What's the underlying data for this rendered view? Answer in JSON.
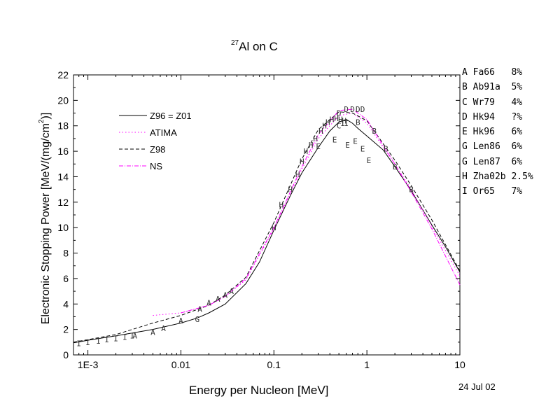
{
  "title": {
    "sup": "27",
    "text": "Al on C"
  },
  "date": "24 Jul 02",
  "references": [
    "A Fa66   8%",
    "B Ab91a  5%",
    "C Wr79   4%",
    "D Hk94   ?%",
    "E Hk96   6%",
    "G Len86  6%",
    "G Len87  6%",
    "H Zha02b 2.5%",
    "I Or65   7%"
  ],
  "chart_data": {
    "type": "line",
    "xlabel": "Energy per Nucleon [MeV]",
    "ylabel": "Electronic Stopping Power [MeV/(mg/cm",
    "ylabel_sup": "2",
    "ylabel_end": ")]",
    "xscale": "log",
    "xlim": [
      0.0007,
      10
    ],
    "ylim": [
      0,
      22
    ],
    "x_ticks": [
      {
        "v": 0.001,
        "label": "1E-3"
      },
      {
        "v": 0.01,
        "label": "0.01"
      },
      {
        "v": 0.1,
        "label": "0.1"
      },
      {
        "v": 1,
        "label": "1"
      },
      {
        "v": 10,
        "label": "10"
      }
    ],
    "y_ticks": [
      0,
      2,
      4,
      6,
      8,
      10,
      12,
      14,
      16,
      18,
      20,
      22
    ],
    "legend_position": "top-left",
    "series": [
      {
        "name": "Z96 = Z01",
        "style": "solid",
        "color": "#000000",
        "x": [
          0.0007,
          0.001,
          0.002,
          0.005,
          0.01,
          0.015,
          0.02,
          0.03,
          0.05,
          0.07,
          0.1,
          0.15,
          0.2,
          0.3,
          0.4,
          0.5,
          0.6,
          0.7,
          0.8,
          1.0,
          1.5,
          2,
          3,
          5,
          7,
          10
        ],
        "y": [
          0.95,
          1.15,
          1.5,
          2.0,
          2.5,
          2.9,
          3.3,
          4.0,
          5.6,
          7.3,
          9.8,
          12.5,
          14.3,
          16.3,
          17.6,
          18.3,
          18.5,
          18.2,
          17.8,
          17.2,
          16.1,
          14.8,
          12.9,
          10.2,
          8.5,
          6.5
        ]
      },
      {
        "name": "ATIMA",
        "style": "dotted",
        "color": "#ff00ff",
        "x": [
          0.005,
          0.01,
          0.02,
          0.03,
          0.05,
          0.1,
          0.2,
          0.3,
          0.5,
          0.7,
          1,
          2,
          3,
          5,
          10
        ],
        "y": [
          3.1,
          3.3,
          3.9,
          4.6,
          5.9,
          9.9,
          14.6,
          17.0,
          18.8,
          19.0,
          18.2,
          15.0,
          13.0,
          10.1,
          6.2
        ]
      },
      {
        "name": "Z98",
        "style": "dashed",
        "color": "#000000",
        "x": [
          0.0007,
          0.001,
          0.002,
          0.005,
          0.01,
          0.02,
          0.03,
          0.05,
          0.1,
          0.2,
          0.3,
          0.5,
          0.7,
          1,
          2,
          3,
          5,
          10
        ],
        "y": [
          1.0,
          1.2,
          1.6,
          2.5,
          3.1,
          3.9,
          4.7,
          6.1,
          10.4,
          15.4,
          17.7,
          19.1,
          19.0,
          18.4,
          15.3,
          13.3,
          10.6,
          6.6
        ]
      },
      {
        "name": "NS",
        "style": "dashdot",
        "color": "#ff00ff",
        "x": [
          0.01,
          0.02,
          0.03,
          0.05,
          0.1,
          0.2,
          0.3,
          0.5,
          0.7,
          1,
          2,
          3,
          5,
          10
        ],
        "y": [
          3.3,
          3.9,
          4.6,
          6.0,
          10.0,
          14.8,
          17.3,
          19.2,
          19.3,
          18.5,
          15.0,
          12.8,
          9.9,
          5.5
        ]
      }
    ],
    "points": [
      {
        "label": "A",
        "x": 0.0032,
        "y": 1.5
      },
      {
        "label": "A",
        "x": 0.005,
        "y": 1.8
      },
      {
        "label": "A",
        "x": 0.0065,
        "y": 2.1
      },
      {
        "label": "A",
        "x": 0.01,
        "y": 2.7
      },
      {
        "label": "A",
        "x": 0.016,
        "y": 3.6
      },
      {
        "label": "A",
        "x": 0.02,
        "y": 4.1
      },
      {
        "label": "A",
        "x": 0.025,
        "y": 4.4
      },
      {
        "label": "A",
        "x": 0.03,
        "y": 4.7
      },
      {
        "label": "A",
        "x": 0.035,
        "y": 5.0
      },
      {
        "label": "G",
        "x": 0.015,
        "y": 2.8
      },
      {
        "label": "I",
        "x": 0.0008,
        "y": 0.9
      },
      {
        "label": "I",
        "x": 0.001,
        "y": 1.0
      },
      {
        "label": "I",
        "x": 0.0013,
        "y": 1.1
      },
      {
        "label": "I",
        "x": 0.0016,
        "y": 1.2
      },
      {
        "label": "I",
        "x": 0.002,
        "y": 1.3
      },
      {
        "label": "I",
        "x": 0.0025,
        "y": 1.4
      },
      {
        "label": "I",
        "x": 0.003,
        "y": 1.5
      },
      {
        "label": "H",
        "x": 0.1,
        "y": 10.0
      },
      {
        "label": "H",
        "x": 0.12,
        "y": 11.8
      },
      {
        "label": "H",
        "x": 0.15,
        "y": 13.0
      },
      {
        "label": "H",
        "x": 0.18,
        "y": 14.2
      },
      {
        "label": "H",
        "x": 0.2,
        "y": 15.2
      },
      {
        "label": "H",
        "x": 0.22,
        "y": 16.0
      },
      {
        "label": "H",
        "x": 0.25,
        "y": 16.5
      },
      {
        "label": "H",
        "x": 0.28,
        "y": 17.0
      },
      {
        "label": "H",
        "x": 0.32,
        "y": 17.6
      },
      {
        "label": "H",
        "x": 0.35,
        "y": 18.0
      },
      {
        "label": "H",
        "x": 0.38,
        "y": 18.3
      },
      {
        "label": "H",
        "x": 0.42,
        "y": 18.5
      },
      {
        "label": "H",
        "x": 0.47,
        "y": 18.6
      },
      {
        "label": "H",
        "x": 0.52,
        "y": 18.5
      },
      {
        "label": "H",
        "x": 0.57,
        "y": 18.4
      },
      {
        "label": "I",
        "x": 0.55,
        "y": 18.2
      },
      {
        "label": "I",
        "x": 0.6,
        "y": 18.2
      },
      {
        "label": "D",
        "x": 0.5,
        "y": 19.0
      },
      {
        "label": "D",
        "x": 0.6,
        "y": 19.3
      },
      {
        "label": "D",
        "x": 0.7,
        "y": 19.3
      },
      {
        "label": "D",
        "x": 0.8,
        "y": 19.3
      },
      {
        "label": "D",
        "x": 0.9,
        "y": 19.3
      },
      {
        "label": "E",
        "x": 0.3,
        "y": 16.4
      },
      {
        "label": "E",
        "x": 0.45,
        "y": 16.9
      },
      {
        "label": "E",
        "x": 0.62,
        "y": 16.5
      },
      {
        "label": "E",
        "x": 0.75,
        "y": 16.8
      },
      {
        "label": "E",
        "x": 0.9,
        "y": 16.2
      },
      {
        "label": "E",
        "x": 1.05,
        "y": 15.3
      },
      {
        "label": "C",
        "x": 0.5,
        "y": 18.0
      },
      {
        "label": "B",
        "x": 0.8,
        "y": 18.3
      },
      {
        "label": "B",
        "x": 1.2,
        "y": 17.6
      },
      {
        "label": "B",
        "x": 1.6,
        "y": 16.2
      },
      {
        "label": "B",
        "x": 2.0,
        "y": 14.8
      },
      {
        "label": "B",
        "x": 3.0,
        "y": 13.0
      }
    ]
  }
}
